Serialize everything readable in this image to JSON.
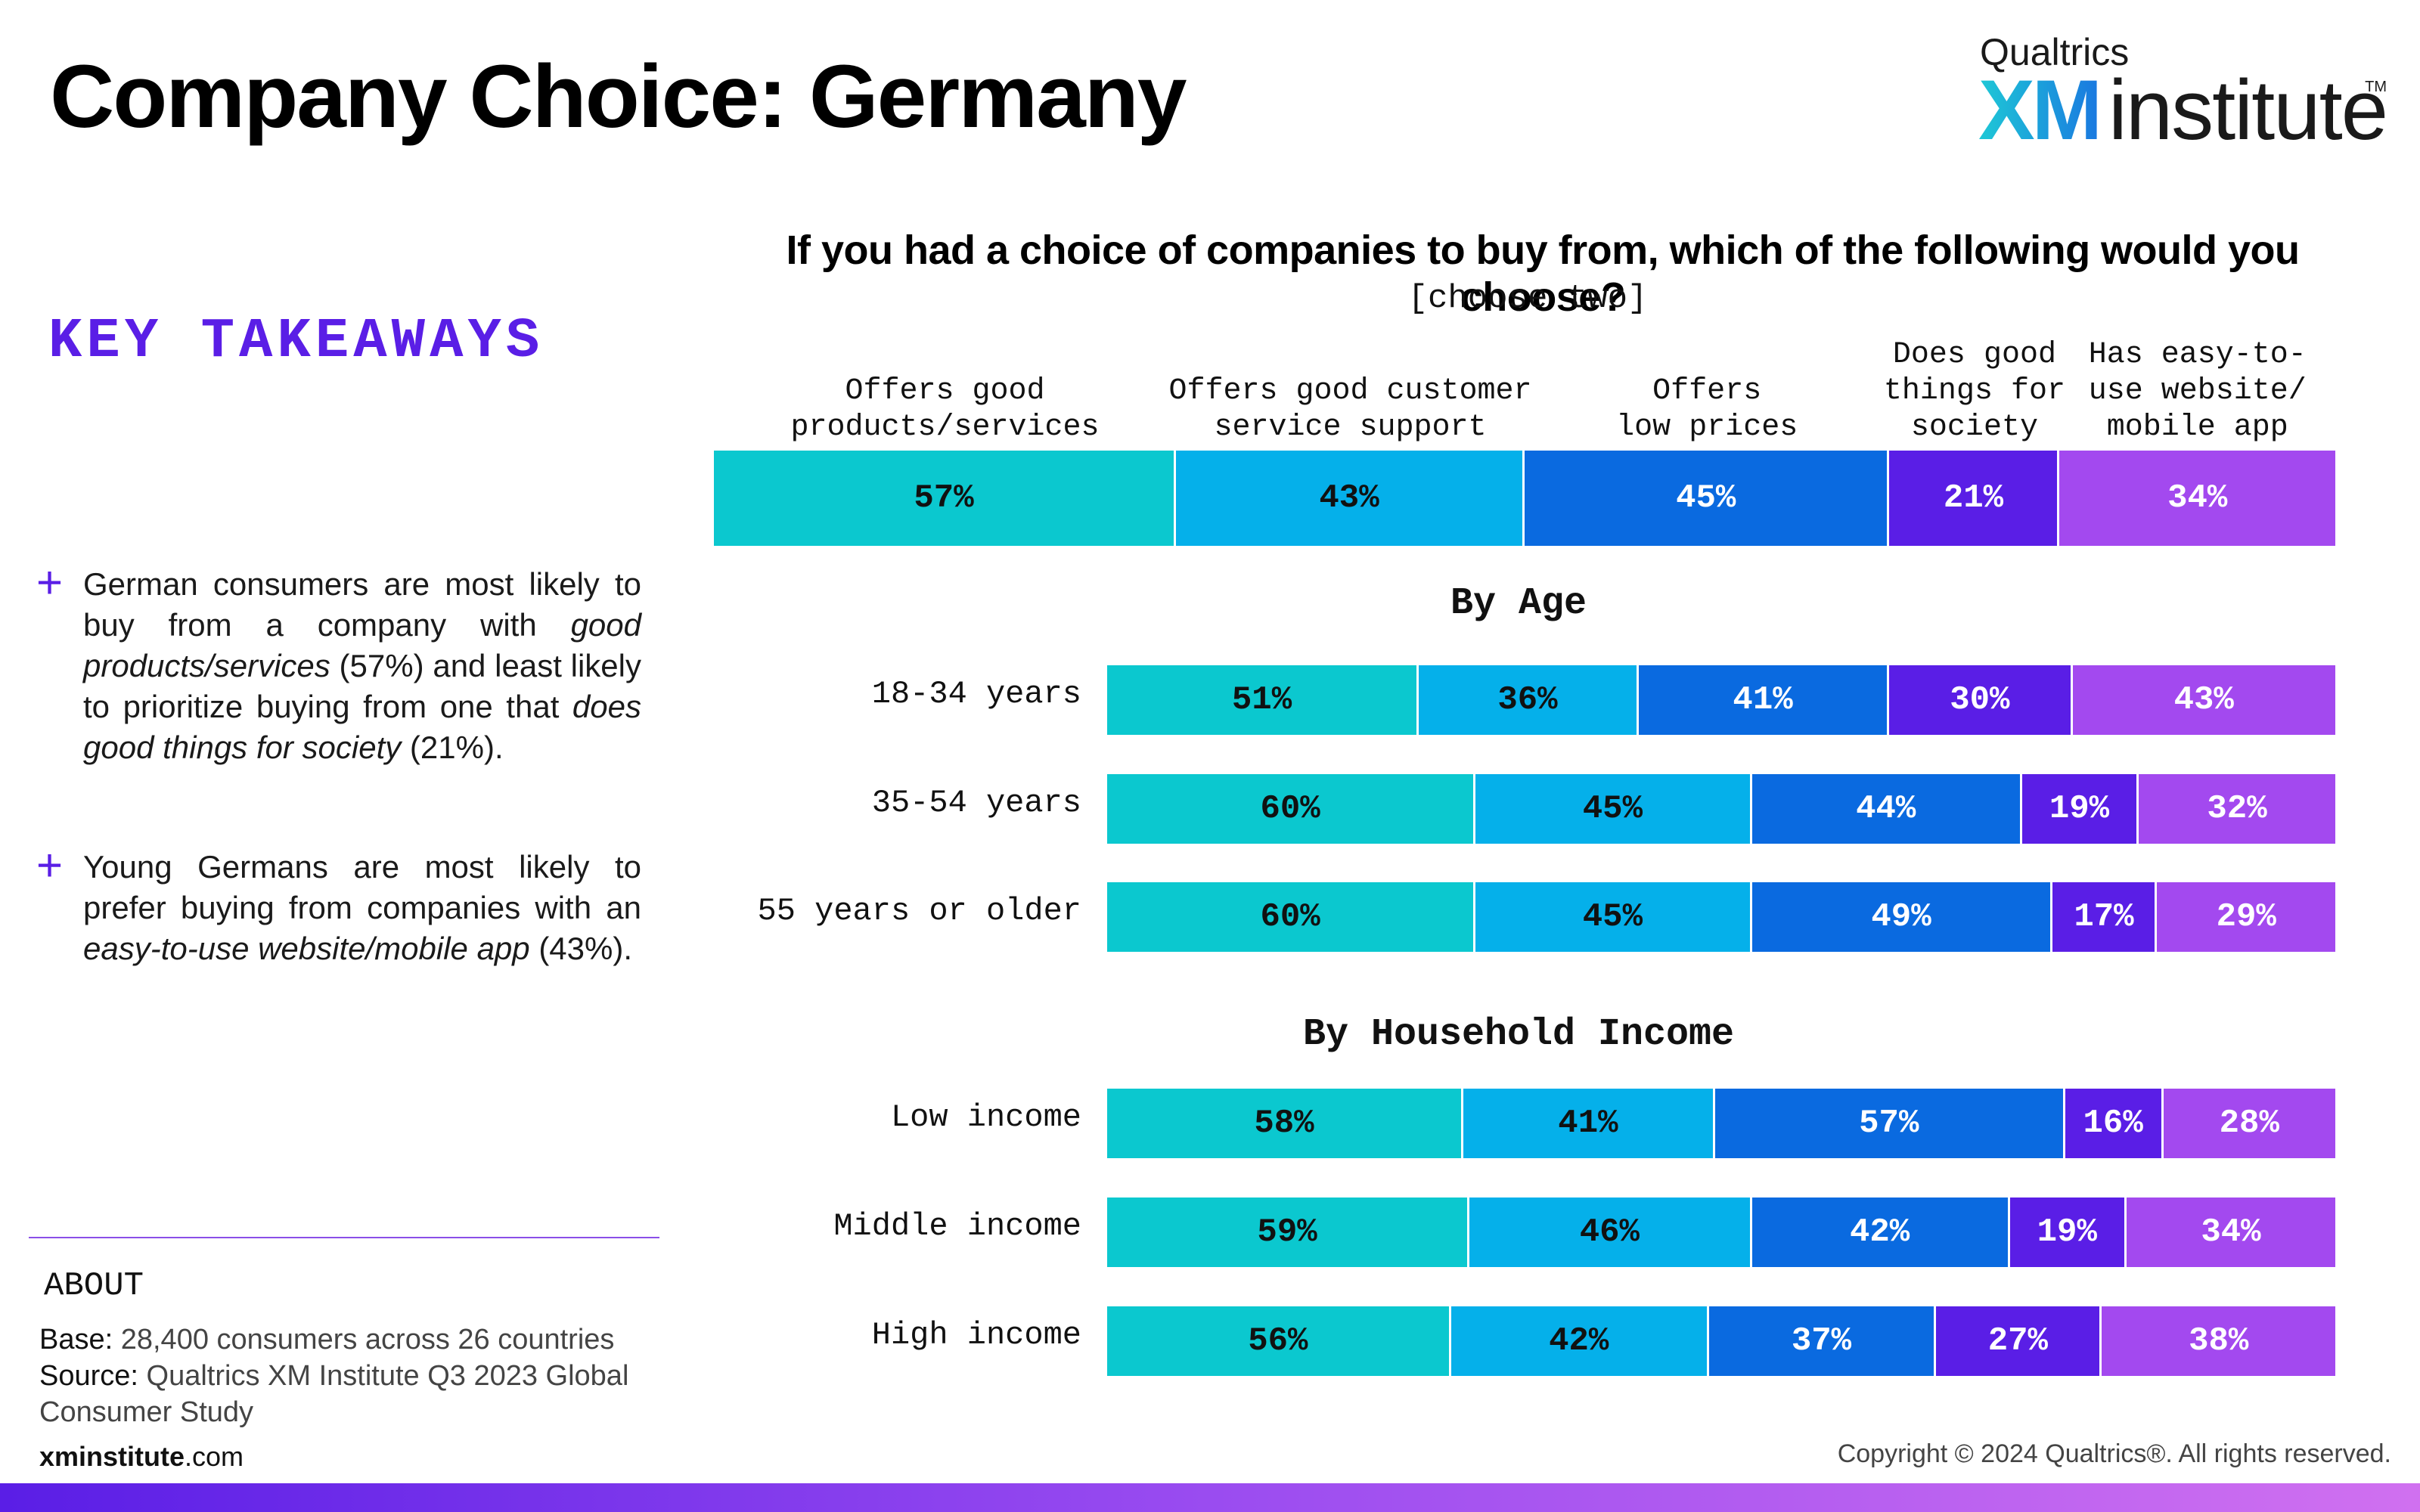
{
  "header": {
    "title": "Company Choice: Germany",
    "logo": {
      "qualtrics": "Qualtrics",
      "xm": "XM",
      "institute": "institute",
      "tm": "TM"
    }
  },
  "sidebar": {
    "key_takeaways_title": "KEY TAKEAWAYS",
    "takeaways": [
      {
        "plus": "+",
        "html": "German consumers are most likely to buy from a company with <i>good products/services</i> (57%) and least likely to prioritize buying from one that <i>does good things for society</i> (21%)."
      },
      {
        "plus": "+",
        "html": "Young Germans are most likely to prefer buying from companies with an <i>easy-to-use website/mobile app</i> (43%)."
      }
    ],
    "about_title": "ABOUT",
    "base_label": "Base:",
    "base_text": " 28,400 consumers across 26 countries",
    "source_label": "Source:",
    "source_text": " Qualtrics XM Institute Q3 2023 Global Consumer Study"
  },
  "footer": {
    "site_bold": "xminstitute",
    "site_rest": ".com",
    "copyright": "Copyright © 2024 Qualtrics®. All rights reserved."
  },
  "chart_data": {
    "type": "bar",
    "orientation": "horizontal-stacked",
    "title": "If you had a choice of companies to buy from, which of the following would you choose?",
    "subtitle": "[choose two]",
    "categories": [
      "Offers good\nproducts/services",
      "Offers good customer\nservice support",
      "Offers\nlow prices",
      "Does good\nthings for\nsociety",
      "Has easy-to-\nuse website/\nmobile app"
    ],
    "colors": [
      "#0bc8cf",
      "#05b0ea",
      "#0a6ae0",
      "#5a1ee6",
      "#a349ef"
    ],
    "label_colors": [
      "#111111",
      "#111111",
      "#ffffff",
      "#ffffff",
      "#ffffff"
    ],
    "overall": {
      "values": [
        57,
        43,
        45,
        21,
        34
      ]
    },
    "groups": [
      {
        "title": "By Age",
        "rows": [
          {
            "label": "18-34 years",
            "values": [
              51,
              36,
              41,
              30,
              43
            ]
          },
          {
            "label": "35-54 years",
            "values": [
              60,
              45,
              44,
              19,
              32
            ]
          },
          {
            "label": "55 years or older",
            "values": [
              60,
              45,
              49,
              17,
              29
            ]
          }
        ]
      },
      {
        "title": "By Household Income",
        "rows": [
          {
            "label": "Low income",
            "values": [
              58,
              41,
              57,
              16,
              28
            ]
          },
          {
            "label": "Middle income",
            "values": [
              59,
              46,
              42,
              19,
              34
            ]
          },
          {
            "label": "High income",
            "values": [
              56,
              42,
              37,
              27,
              38
            ]
          }
        ]
      }
    ],
    "value_suffix": "%"
  }
}
